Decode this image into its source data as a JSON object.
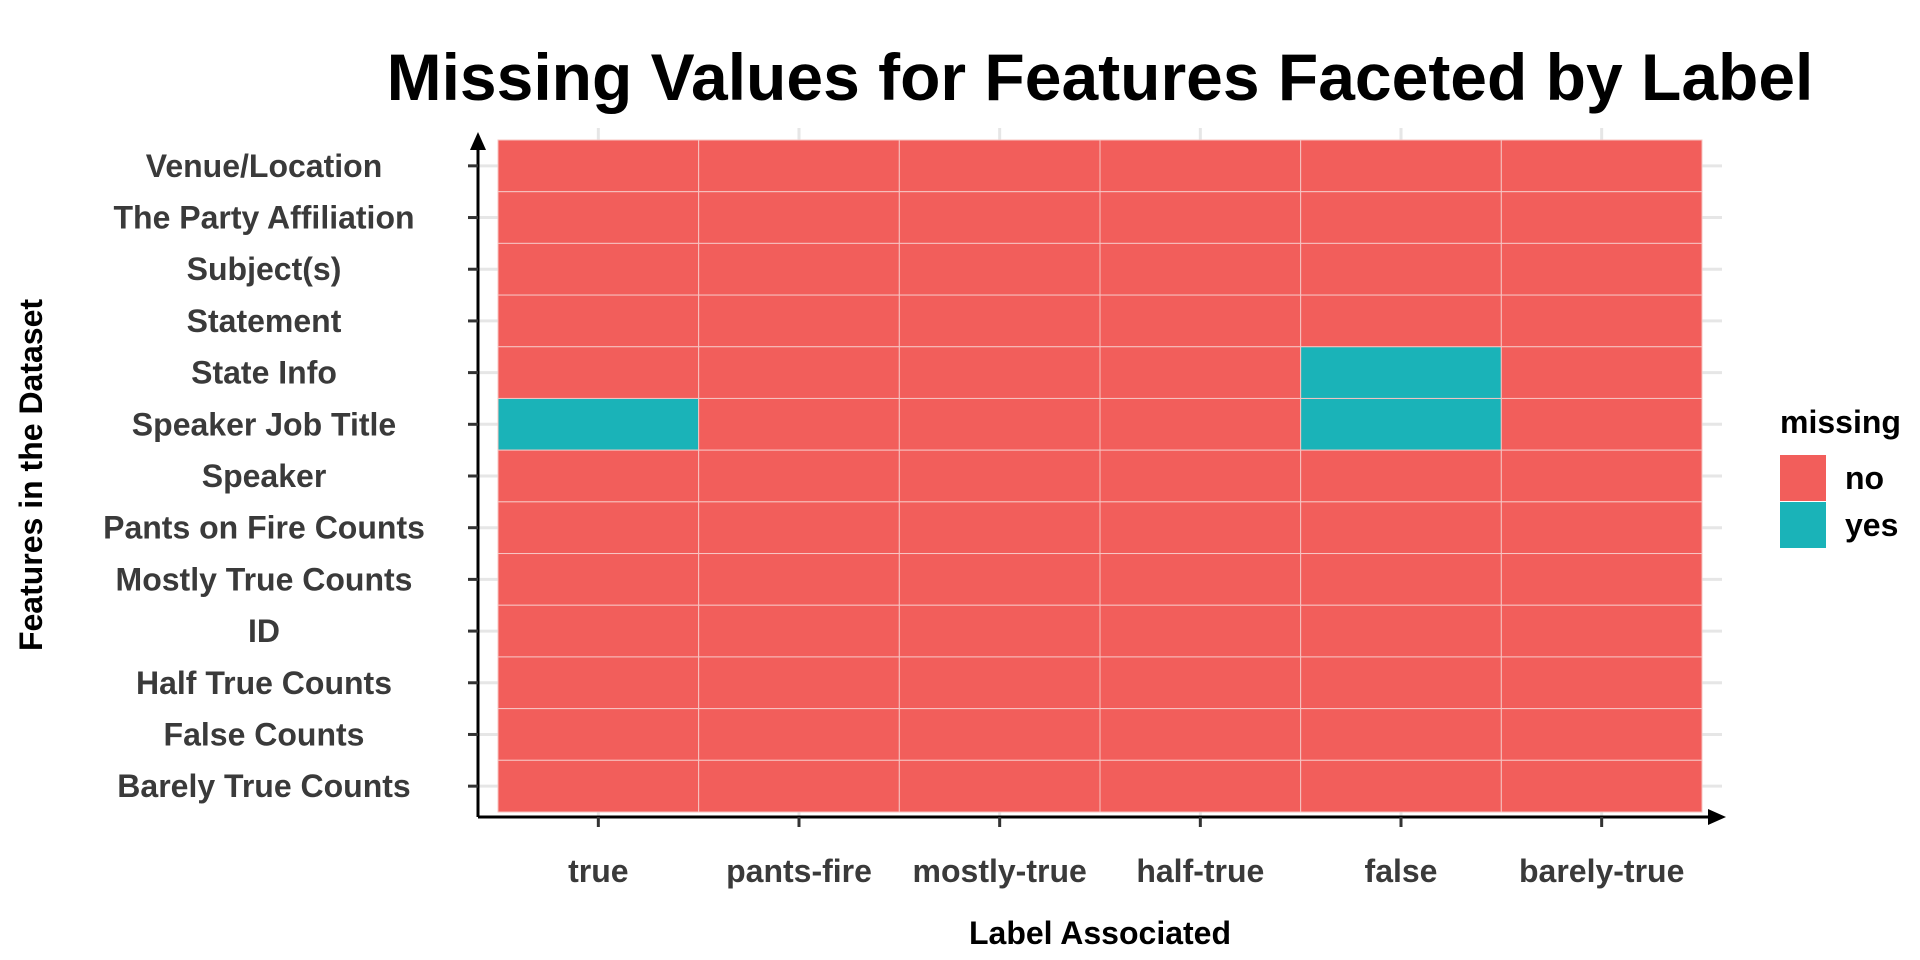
{
  "chart_data": {
    "type": "heatmap",
    "title": "Missing Values for Features Faceted by Label",
    "xlabel": "Label Associated",
    "ylabel": "Features in the Dataset",
    "x_categories": [
      "true",
      "pants-fire",
      "mostly-true",
      "half-true",
      "false",
      "barely-true"
    ],
    "y_categories": [
      "Venue/Location",
      "The Party Affiliation",
      "Subject(s)",
      "Statement",
      "State Info",
      "Speaker Job Title",
      "Speaker",
      "Pants on Fire Counts",
      "Mostly True Counts",
      "ID",
      "Half True Counts",
      "False Counts",
      "Barely True Counts"
    ],
    "values": [
      [
        "no",
        "no",
        "no",
        "no",
        "no",
        "no"
      ],
      [
        "no",
        "no",
        "no",
        "no",
        "no",
        "no"
      ],
      [
        "no",
        "no",
        "no",
        "no",
        "no",
        "no"
      ],
      [
        "no",
        "no",
        "no",
        "no",
        "no",
        "no"
      ],
      [
        "no",
        "no",
        "no",
        "no",
        "yes",
        "no"
      ],
      [
        "yes",
        "no",
        "no",
        "no",
        "yes",
        "no"
      ],
      [
        "no",
        "no",
        "no",
        "no",
        "no",
        "no"
      ],
      [
        "no",
        "no",
        "no",
        "no",
        "no",
        "no"
      ],
      [
        "no",
        "no",
        "no",
        "no",
        "no",
        "no"
      ],
      [
        "no",
        "no",
        "no",
        "no",
        "no",
        "no"
      ],
      [
        "no",
        "no",
        "no",
        "no",
        "no",
        "no"
      ],
      [
        "no",
        "no",
        "no",
        "no",
        "no",
        "no"
      ],
      [
        "no",
        "no",
        "no",
        "no",
        "no",
        "no"
      ]
    ],
    "legend": {
      "title": "missing",
      "placement": "right",
      "entries": [
        {
          "label": "no",
          "color": "#F25E5B"
        },
        {
          "label": "yes",
          "color": "#1AB3B8"
        }
      ]
    },
    "grid": true
  }
}
